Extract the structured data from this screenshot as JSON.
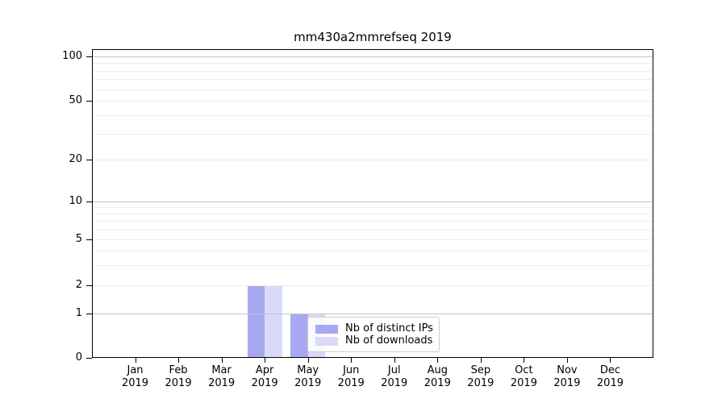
{
  "title": "mm430a2mmrefseq 2019",
  "chart_data": {
    "type": "bar",
    "title": "mm430a2mmrefseq 2019",
    "categories": [
      "Jan 2019",
      "Feb 2019",
      "Mar 2019",
      "Apr 2019",
      "May 2019",
      "Jun 2019",
      "Jul 2019",
      "Aug 2019",
      "Sep 2019",
      "Oct 2019",
      "Nov 2019",
      "Dec 2019"
    ],
    "series": [
      {
        "name": "Nb of distinct IPs",
        "color": "#a8a8f2",
        "values": [
          0,
          0,
          0,
          2,
          1,
          0,
          0,
          0,
          0,
          0,
          0,
          0
        ]
      },
      {
        "name": "Nb of downloads",
        "color": "#dadaf8",
        "values": [
          0,
          0,
          0,
          2,
          1,
          0,
          0,
          0,
          0,
          0,
          0,
          0
        ]
      }
    ],
    "xlabel": "",
    "ylabel": "",
    "yscale": "symlog",
    "yticks": [
      0,
      1,
      2,
      5,
      10,
      20,
      50,
      100
    ],
    "minor_gridline_values": [
      3,
      4,
      6,
      7,
      8,
      9,
      30,
      40,
      60,
      70,
      80,
      90
    ],
    "ylim": [
      0,
      100
    ],
    "grid": "horizontal",
    "legend_position": "lower-center",
    "colors": {
      "grid_major": "#c4c4c4",
      "grid_minor": "#ececec",
      "axis": "#000000",
      "legend_border": "#cccccc"
    }
  }
}
